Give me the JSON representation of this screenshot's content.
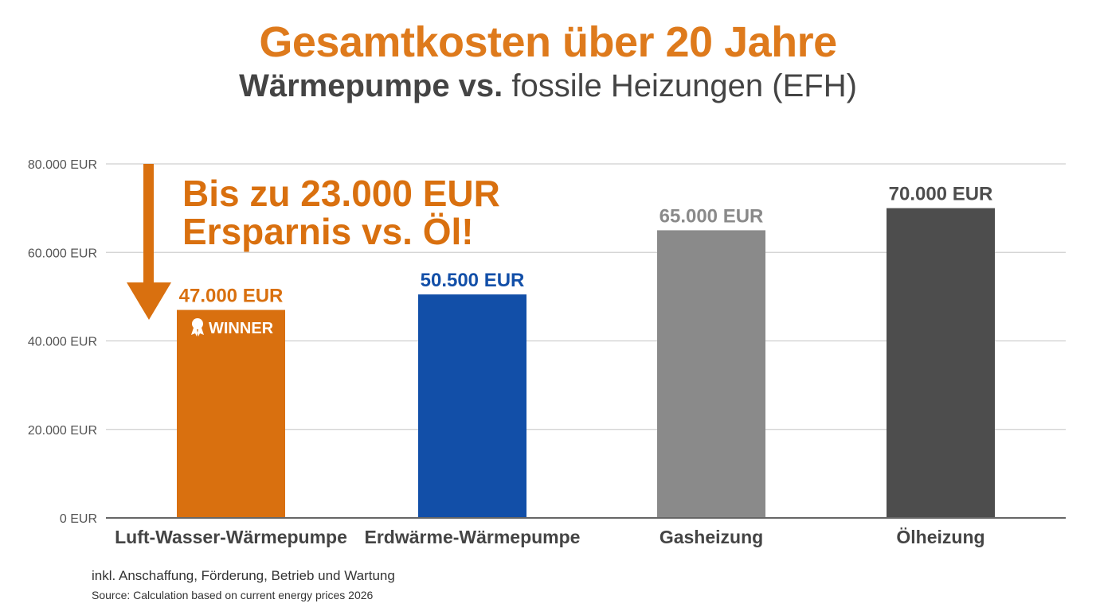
{
  "title": "Gesamtkosten über 20 Jahre",
  "subtitle_bold": "Wärmepumpe vs.",
  "subtitle_rest": "fossile Heizungen (EFH)",
  "callout": [
    "Bis zu 23.000 EUR",
    "Ersparnis vs. Öl!"
  ],
  "badge": "WINNER",
  "note": "inkl. Anschaffung, Förderung, Betrieb und Wartung",
  "source": "Source: Calculation based on current energy prices 2026",
  "chart_data": {
    "type": "bar",
    "title": "Gesamtkosten über 20 Jahre",
    "xlabel": "",
    "ylabel": "",
    "ylim": [
      0,
      80000
    ],
    "grid": true,
    "yticks": [
      0,
      20000,
      40000,
      60000,
      80000
    ],
    "ytick_labels": [
      "0 EUR",
      "20.000 EUR",
      "40.000 EUR",
      "60.000 EUR",
      "80.000 EUR"
    ],
    "categories": [
      "Luft-Wasser-Wärmepumpe",
      "Erdwärme-Wärmepumpe",
      "Gasheizung",
      "Ölheizung"
    ],
    "values": [
      47000,
      50500,
      65000,
      70000
    ],
    "value_labels": [
      "47.000 EUR",
      "50.500 EUR",
      "65.000 EUR",
      "70.000 EUR"
    ],
    "colors": [
      "#D9700F",
      "#124FA8",
      "#8A8A8A",
      "#4D4D4D"
    ],
    "label_colors": [
      "#D9700F",
      "#124FA8",
      "#8A8A8A",
      "#4D4D4D"
    ]
  }
}
